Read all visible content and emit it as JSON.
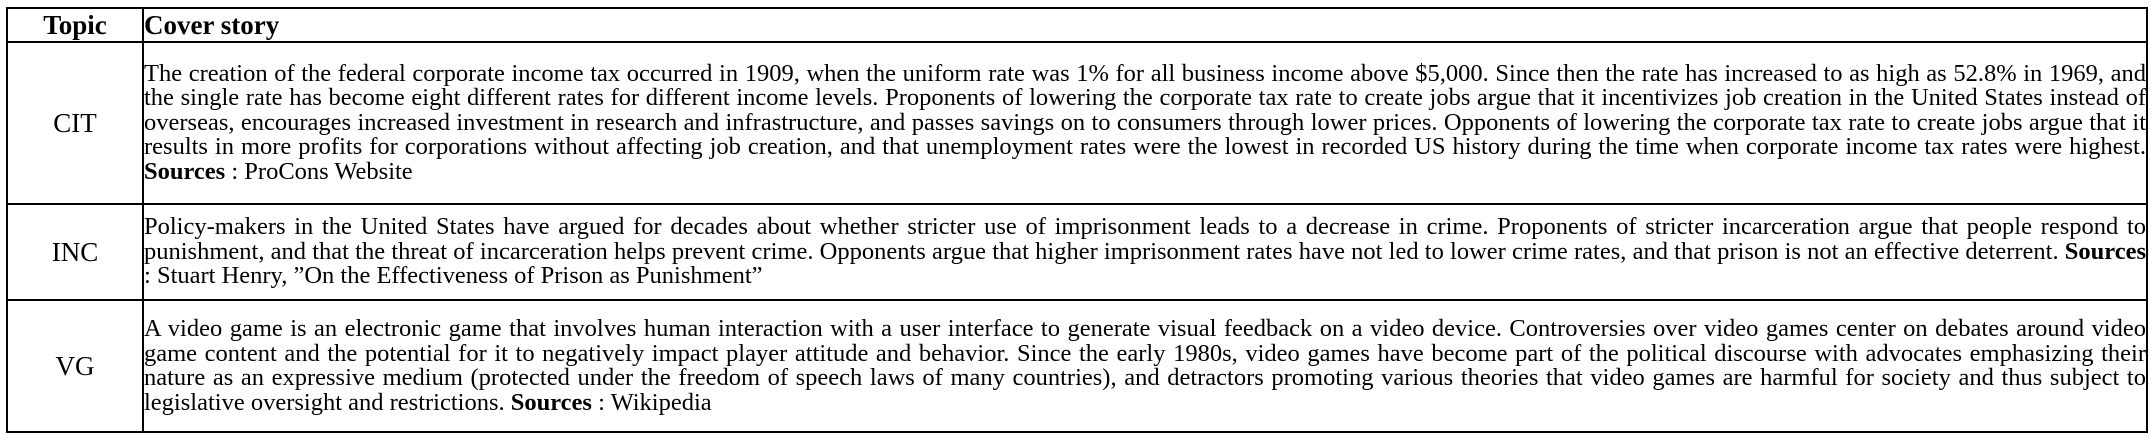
{
  "table": {
    "headers": {
      "topic": "Topic",
      "story": "Cover story"
    },
    "sources_label": "Sources",
    "sources_separator": " : ",
    "rows": [
      {
        "topic": "CIT",
        "story": "The creation of the federal corporate income tax occurred in 1909, when the uniform rate was 1% for all business income above $5,000. Since then the rate has increased to as high as 52.8% in 1969, and the single rate has become eight different rates for different income levels. Proponents of lowering the corporate tax rate to create jobs argue that it incentivizes job creation in the United States instead of overseas, encourages increased investment in research and infrastructure, and passes savings on to consumers through lower prices. Opponents of lowering the corporate tax rate to create jobs argue that it results in more profits for corporations without affecting job creation, and that unemployment rates were the lowest in recorded US history during the time when corporate income tax rates were highest.",
        "source": "ProCons Website"
      },
      {
        "topic": "INC",
        "story": "Policy-makers in the United States have argued for decades about whether stricter use of imprisonment leads to a decrease in crime. Proponents of stricter incarceration argue that people respond to punishment, and that the threat of incarceration helps prevent crime. Opponents argue that higher imprisonment rates have not led to lower crime rates, and that prison is not an effective deterrent.",
        "source": "Stuart Henry, ”On the Effectiveness of Prison as Punishment”"
      },
      {
        "topic": "VG",
        "story": "A video game is an electronic game that involves human interaction with a user interface to generate visual feedback on a video device. Controversies over video games center on debates around video game content and the potential for it to negatively impact player attitude and behavior. Since the early 1980s, video games have become part of the political discourse with advocates emphasizing their nature as an expressive medium (protected under the freedom of speech laws of many countries), and detractors promoting various theories that video games are harmful for society and thus subject to legislative oversight and restrictions.",
        "source": "Wikipedia"
      }
    ]
  }
}
